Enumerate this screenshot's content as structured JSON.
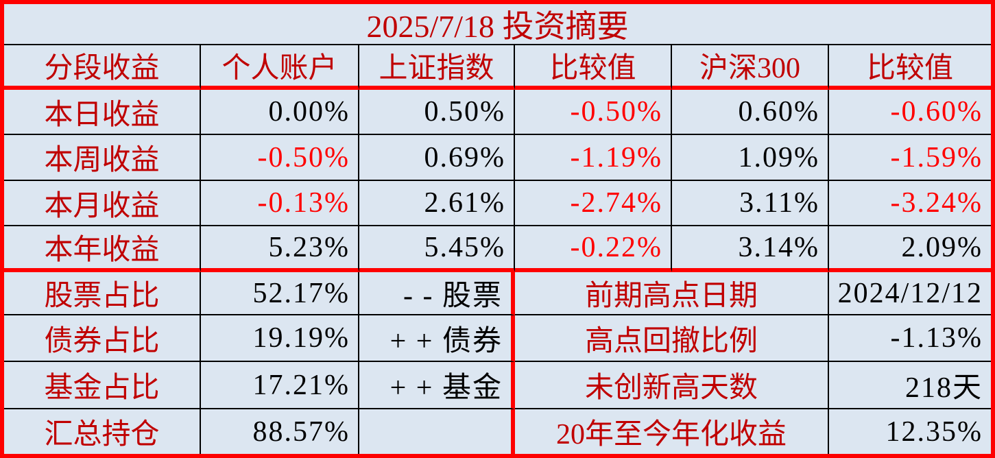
{
  "title": "2025/7/18  投资摘要",
  "colors": {
    "background": "#dce6f1",
    "label_red": "#c00000",
    "negative_red": "#ff0000",
    "value_black": "#000000",
    "thick_border_red": "#fe0000",
    "grid_line_black": "#000000"
  },
  "headers": {
    "segment": "分段收益",
    "personal_account": "个人账户",
    "sse_index": "上证指数",
    "compare_1": "比较值",
    "csi300": "沪深300",
    "compare_2": "比较值"
  },
  "return_rows": [
    {
      "label": "本日收益",
      "cells": [
        {
          "text": "0.00%",
          "neg": false
        },
        {
          "text": "0.50%",
          "neg": false
        },
        {
          "text": "-0.50%",
          "neg": true
        },
        {
          "text": "0.60%",
          "neg": false
        },
        {
          "text": "-0.60%",
          "neg": true
        }
      ]
    },
    {
      "label": "本周收益",
      "cells": [
        {
          "text": "-0.50%",
          "neg": true
        },
        {
          "text": "0.69%",
          "neg": false
        },
        {
          "text": "-1.19%",
          "neg": true
        },
        {
          "text": "1.09%",
          "neg": false
        },
        {
          "text": "-1.59%",
          "neg": true
        }
      ]
    },
    {
      "label": "本月收益",
      "cells": [
        {
          "text": "-0.13%",
          "neg": true
        },
        {
          "text": "2.61%",
          "neg": false
        },
        {
          "text": "-2.74%",
          "neg": true
        },
        {
          "text": "3.11%",
          "neg": false
        },
        {
          "text": "-3.24%",
          "neg": true
        }
      ]
    },
    {
      "label": "本年收益",
      "cells": [
        {
          "text": "5.23%",
          "neg": false
        },
        {
          "text": "5.45%",
          "neg": false
        },
        {
          "text": "-0.22%",
          "neg": true
        },
        {
          "text": "3.14%",
          "neg": false
        },
        {
          "text": "2.09%",
          "neg": false
        }
      ]
    }
  ],
  "portfolio_rows": [
    {
      "label": "股票占比",
      "value": "52.17%",
      "indicator": "- - 股票"
    },
    {
      "label": "债券占比",
      "value": "19.19%",
      "indicator": "+ + 债券"
    },
    {
      "label": "基金占比",
      "value": "17.21%",
      "indicator": "+ + 基金"
    },
    {
      "label": "汇总持仓",
      "value": "88.57%",
      "indicator": ""
    }
  ],
  "stats_rows": [
    {
      "label": "前期高点日期",
      "value": "2024/12/12"
    },
    {
      "label": "高点回撤比例",
      "value": "-1.13%"
    },
    {
      "label": "未创新高天数",
      "value": "218天"
    },
    {
      "label": "20年至今年化收益",
      "value": "12.35%"
    }
  ]
}
